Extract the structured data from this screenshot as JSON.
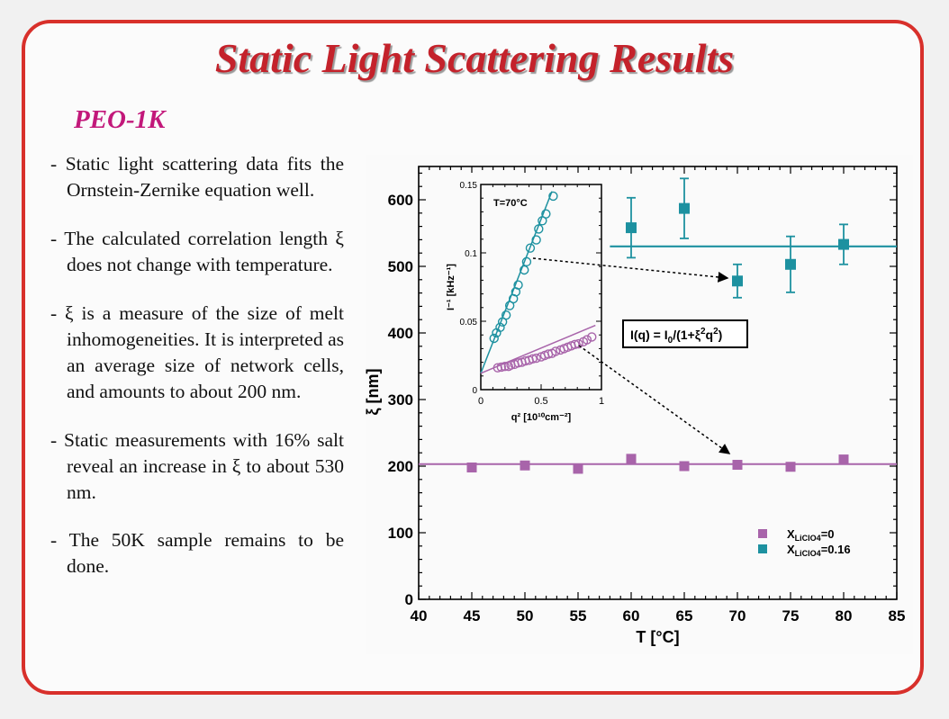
{
  "slide": {
    "title": "Static Light Scattering Results",
    "subtitle": "PEO-1K",
    "bullets": [
      "- Static light scattering data fits the Ornstein-Zernike equation well.",
      "- The calculated correlation length ξ does not change with temperature.",
      "- ξ is a measure of the size of melt inhomogeneities. It is interpreted as an average size of network cells, and amounts to about 200 nm.",
      "- Static measurements with 16% salt reveal an increase in ξ to about 530 nm.",
      "- The 50K sample remains to be done."
    ]
  },
  "colors": {
    "frame": "#d8302b",
    "title": "#c4222b",
    "subtitle": "#c2187a",
    "series_pure": "#a864aa",
    "series_salt": "#1d91a0"
  },
  "chart_data": [
    {
      "type": "scatter",
      "xlabel": "T [°C]",
      "ylabel": "ξ [nm]",
      "xlim": [
        40,
        85
      ],
      "ylim": [
        0,
        650
      ],
      "xticks": [
        40,
        45,
        50,
        55,
        60,
        65,
        70,
        75,
        80,
        85
      ],
      "yticks": [
        0,
        100,
        200,
        300,
        400,
        500,
        600
      ],
      "legend_position": "bottom-right",
      "series": [
        {
          "name": "X_LiClO4=0",
          "legend_main": "X",
          "legend_sub": "LiClO4",
          "legend_suffix": "=0",
          "color": "#a864aa",
          "x": [
            45,
            50,
            55,
            60,
            65,
            70,
            75,
            80
          ],
          "y": [
            198,
            201,
            196,
            211,
            200,
            202,
            199,
            210
          ],
          "fit_y": 203
        },
        {
          "name": "X_LiClO4=0.16",
          "legend_main": "X",
          "legend_sub": "LiClO4",
          "legend_suffix": "=0.16",
          "color": "#1d91a0",
          "x": [
            60,
            65,
            70,
            75,
            80
          ],
          "y": [
            558,
            587,
            478,
            503,
            533
          ],
          "err": [
            45,
            45,
            25,
            42,
            30
          ],
          "fit_y": 530
        }
      ],
      "annotation": {
        "text": "I(q) = I",
        "sub": "0",
        "rest": "/(1+ξ",
        "sup": "2",
        "rest2": "q",
        "sup2": "2",
        "end": ")"
      }
    },
    {
      "type": "scatter",
      "xlabel": "q² [10¹⁰cm⁻²]",
      "ylabel": "I⁻¹ [kHz⁻¹]",
      "xlim": [
        0,
        1
      ],
      "ylim": [
        0,
        0.15
      ],
      "xticks": [
        0,
        0.5,
        1
      ],
      "xtick_labels": [
        "0",
        "0.5",
        "1"
      ],
      "yticks": [
        0,
        0.05,
        0.1,
        0.15
      ],
      "ytick_labels": [
        "0",
        "0.05",
        "0.1",
        "0.15"
      ],
      "annotation": "T=70°C",
      "series": [
        {
          "color": "#1d91a0",
          "x": [
            0.11,
            0.13,
            0.16,
            0.18,
            0.21,
            0.24,
            0.27,
            0.29,
            0.31,
            0.36,
            0.38,
            0.41,
            0.46,
            0.48,
            0.51,
            0.54,
            0.6
          ],
          "y": [
            0.0375,
            0.0415,
            0.0455,
            0.0495,
            0.0545,
            0.0615,
            0.0665,
            0.0715,
            0.0765,
            0.0875,
            0.0935,
            0.1035,
            0.1095,
            0.1175,
            0.1235,
            0.1285,
            0.1415
          ],
          "fit": [
            [
              0,
              0.012
            ],
            [
              0.59,
              0.145
            ]
          ]
        },
        {
          "color": "#a864aa",
          "x": [
            0.14,
            0.17,
            0.2,
            0.23,
            0.25,
            0.28,
            0.31,
            0.34,
            0.37,
            0.4,
            0.43,
            0.46,
            0.5,
            0.53,
            0.56,
            0.59,
            0.62,
            0.66,
            0.69,
            0.72,
            0.75,
            0.78,
            0.81,
            0.85,
            0.88,
            0.92
          ],
          "y": [
            0.016,
            0.0165,
            0.017,
            0.017,
            0.018,
            0.0185,
            0.0195,
            0.02,
            0.021,
            0.0215,
            0.0225,
            0.023,
            0.024,
            0.025,
            0.026,
            0.0265,
            0.028,
            0.029,
            0.03,
            0.031,
            0.032,
            0.033,
            0.0335,
            0.035,
            0.0365,
            0.0385
          ],
          "fit": [
            [
              0,
              0.012
            ],
            [
              0.95,
              0.047
            ]
          ]
        }
      ]
    }
  ]
}
